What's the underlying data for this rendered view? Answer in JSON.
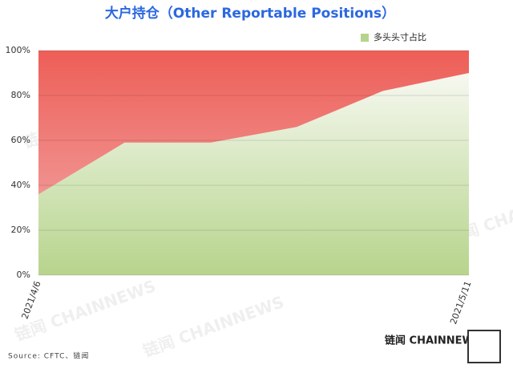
{
  "chart_data": {
    "type": "area",
    "title": "大户持仓（Other Reportable Positions）",
    "categories": [
      "2021/4/6",
      null,
      null,
      null,
      null,
      "2021/5/11"
    ],
    "series": [
      {
        "name": "多头头寸占比",
        "color": "#b7d48c",
        "values": [
          36,
          59,
          59,
          66,
          82,
          90
        ]
      }
    ],
    "ylim": [
      0,
      100
    ],
    "yticks": [
      {
        "value": 0,
        "label": "0%"
      },
      {
        "value": 20,
        "label": "20%"
      },
      {
        "value": 40,
        "label": "40%"
      },
      {
        "value": 60,
        "label": "60%"
      },
      {
        "value": 80,
        "label": "80%"
      },
      {
        "value": 100,
        "label": "100%"
      }
    ],
    "grid": true,
    "legend": "top-right",
    "source": "Source: CFTC、链闻",
    "watermark": "链闻 CHAINNEWS"
  }
}
